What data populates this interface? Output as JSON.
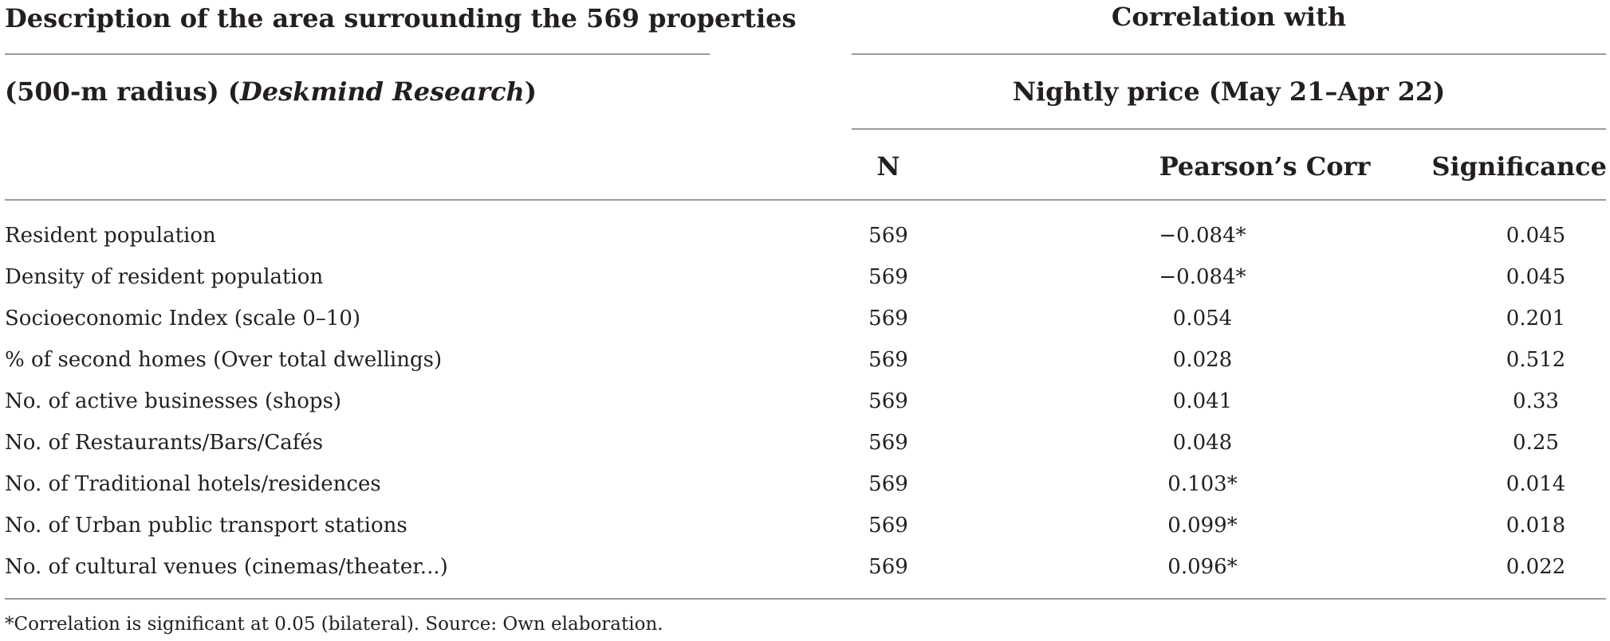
{
  "table": {
    "header": {
      "desc_line1": "Description of the area surrounding the 569 properties",
      "desc_line2_prefix": "(500-m radius) (",
      "desc_line2_italic": "Deskmind Research",
      "desc_line2_suffix": ")",
      "group_title": "Correlation with",
      "group_subtitle": "Nightly price (May 21–Apr 22)",
      "columns": [
        "N",
        "Pearson’s Corr",
        "Significance"
      ]
    },
    "rows": [
      {
        "label": "Resident population",
        "n": "569",
        "corr": "−0.084*",
        "sig": "0.045"
      },
      {
        "label": "Density of resident population",
        "n": "569",
        "corr": "−0.084*",
        "sig": "0.045"
      },
      {
        "label": "Socioeconomic Index (scale 0–10)",
        "n": "569",
        "corr": "0.054",
        "sig": "0.201"
      },
      {
        "label": "% of second homes (Over total dwellings)",
        "n": "569",
        "corr": "0.028",
        "sig": "0.512"
      },
      {
        "label": "No. of active businesses (shops)",
        "n": "569",
        "corr": "0.041",
        "sig": "0.33"
      },
      {
        "label": "No. of Restaurants/Bars/Cafés",
        "n": "569",
        "corr": "0.048",
        "sig": "0.25"
      },
      {
        "label": "No. of Traditional hotels/residences",
        "n": "569",
        "corr": "0.103*",
        "sig": "0.014"
      },
      {
        "label": "No. of Urban public transport stations",
        "n": "569",
        "corr": "0.099*",
        "sig": "0.018"
      },
      {
        "label": "No. of cultural venues (cinemas/theater...)",
        "n": "569",
        "corr": "0.096*",
        "sig": "0.022"
      }
    ],
    "footnote": "*Correlation is significant at 0.05 (bilateral). Source: Own elaboration."
  }
}
